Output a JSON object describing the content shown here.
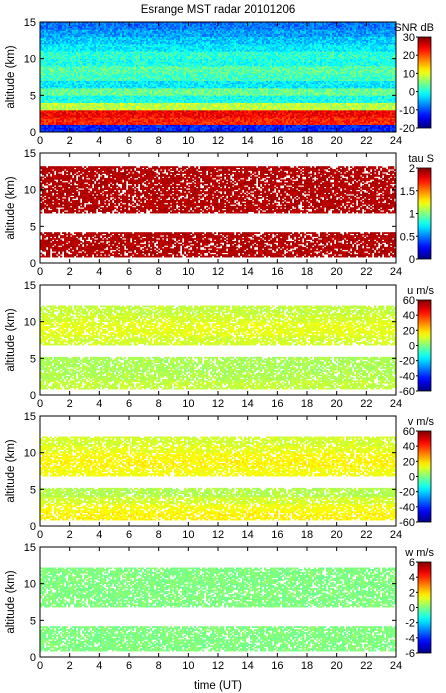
{
  "title": "Esrange MST radar 20101206",
  "x_label": "time (UT)",
  "chart_data": [
    {
      "type": "heatmap",
      "ylabel": "altitude (km)",
      "colorbar_label": "SNR dB",
      "xlim": [
        0,
        24
      ],
      "ylim": [
        0,
        15
      ],
      "xticks": [
        "0",
        "2",
        "4",
        "6",
        "8",
        "10",
        "12",
        "14",
        "16",
        "18",
        "20",
        "22",
        "24"
      ],
      "yticks": [
        "0",
        "5",
        "10",
        "15"
      ],
      "zlim": [
        -20,
        30
      ],
      "cticks": [
        "30",
        "20",
        "10",
        "0",
        "-10",
        "-20"
      ],
      "profile": {
        "altitude_km": [
          0.5,
          1.5,
          2.5,
          3.5,
          4.5,
          5.5,
          6.5,
          7.5,
          8.5,
          9.5,
          10.5,
          11.5,
          12.5,
          13.5,
          14.5
        ],
        "value": [
          -12,
          22,
          24,
          8,
          0,
          4,
          -2,
          2,
          3,
          0,
          1,
          -2,
          -4,
          -6,
          -8
        ]
      }
    },
    {
      "type": "heatmap",
      "ylabel": "altitude (km)",
      "colorbar_label": "tau S",
      "xlim": [
        0,
        24
      ],
      "ylim": [
        0,
        15
      ],
      "xticks": [
        "0",
        "2",
        "4",
        "6",
        "8",
        "10",
        "12",
        "14",
        "16",
        "18",
        "20",
        "22",
        "24"
      ],
      "yticks": [
        "0",
        "5",
        "10",
        "15"
      ],
      "zlim": [
        0,
        2
      ],
      "cticks": [
        "2",
        "1.5",
        "1",
        "0.5",
        "0"
      ],
      "profile": {
        "altitude_km": [
          1.5,
          2.5,
          3.5,
          7.5,
          8.5,
          9.5,
          10.5,
          11.5,
          12.5
        ],
        "value": [
          1.9,
          1.9,
          1.9,
          1.9,
          1.9,
          1.9,
          1.9,
          1.9,
          1.9
        ]
      }
    },
    {
      "type": "heatmap",
      "ylabel": "altitude (km)",
      "colorbar_label": "u m/s",
      "xlim": [
        0,
        24
      ],
      "ylim": [
        0,
        15
      ],
      "xticks": [
        "0",
        "2",
        "4",
        "6",
        "8",
        "10",
        "12",
        "14",
        "16",
        "18",
        "20",
        "22",
        "24"
      ],
      "yticks": [
        "0",
        "5",
        "10",
        "15"
      ],
      "zlim": [
        -60,
        60
      ],
      "cticks": [
        "60",
        "40",
        "20",
        "0",
        "-20",
        "-40",
        "-60"
      ],
      "profile": {
        "altitude_km": [
          1.5,
          2.5,
          3.5,
          4.5,
          7.5,
          8.5,
          9.5,
          10.5,
          11.5
        ],
        "value": [
          8,
          6,
          5,
          5,
          10,
          12,
          12,
          10,
          8
        ]
      }
    },
    {
      "type": "heatmap",
      "ylabel": "altitude (km)",
      "colorbar_label": "v m/s",
      "xlim": [
        0,
        24
      ],
      "ylim": [
        0,
        15
      ],
      "xticks": [
        "0",
        "2",
        "4",
        "6",
        "8",
        "10",
        "12",
        "14",
        "16",
        "18",
        "20",
        "22",
        "24"
      ],
      "yticks": [
        "0",
        "5",
        "10",
        "15"
      ],
      "zlim": [
        -60,
        60
      ],
      "cticks": [
        "60",
        "40",
        "20",
        "0",
        "-20",
        "-40",
        "-60"
      ],
      "profile": {
        "altitude_km": [
          1.5,
          2.5,
          3.5,
          4.5,
          7.5,
          8.5,
          9.5,
          10.5,
          11.5
        ],
        "value": [
          16,
          14,
          10,
          6,
          14,
          16,
          15,
          12,
          10
        ]
      }
    },
    {
      "type": "heatmap",
      "ylabel": "altitude (km)",
      "colorbar_label": "w m/s",
      "xlim": [
        0,
        24
      ],
      "ylim": [
        0,
        15
      ],
      "xticks": [
        "0",
        "2",
        "4",
        "6",
        "8",
        "10",
        "12",
        "14",
        "16",
        "18",
        "20",
        "22",
        "24"
      ],
      "yticks": [
        "0",
        "5",
        "10",
        "15"
      ],
      "zlim": [
        -6,
        6
      ],
      "cticks": [
        "6",
        "4",
        "2",
        "0",
        "-2",
        "-4",
        "-6"
      ],
      "profile": {
        "altitude_km": [
          1.5,
          2.5,
          3.5,
          7.5,
          8.5,
          9.5,
          10.5,
          11.5
        ],
        "value": [
          0,
          0,
          0,
          0,
          0,
          0,
          0,
          0
        ]
      }
    }
  ]
}
